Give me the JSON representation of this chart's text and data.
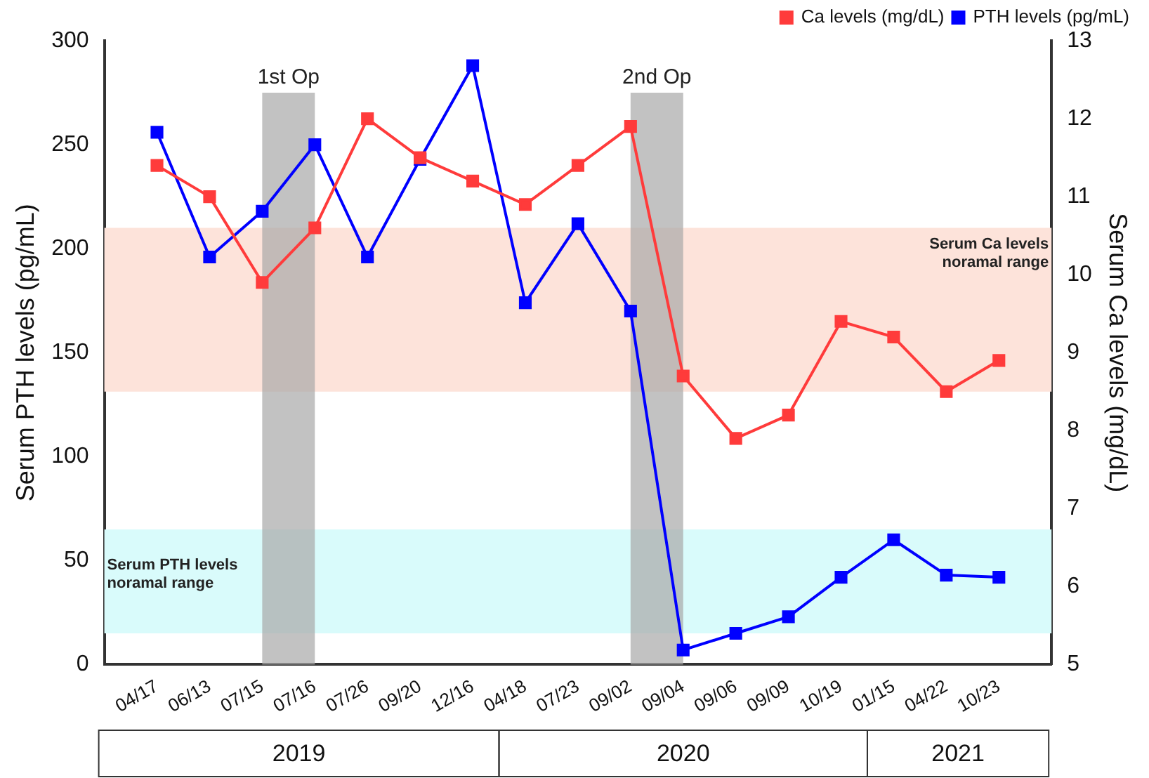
{
  "chart_data": {
    "type": "line",
    "categories": [
      "04/17",
      "06/13",
      "07/15",
      "07/16",
      "07/26",
      "09/20",
      "12/16",
      "04/18",
      "07/23",
      "09/02",
      "09/04",
      "09/06",
      "09/09",
      "10/19",
      "01/15",
      "04/22",
      "10/23"
    ],
    "series": [
      {
        "name": "PTH levels (pg/mL)",
        "color": "#0000ff",
        "values": [
          256,
          196,
          218,
          250,
          196,
          243,
          288,
          174,
          212,
          170,
          7,
          15,
          23,
          42,
          60,
          43,
          42
        ]
      },
      {
        "name": "Ca levels (mg/dL)",
        "color": "#ff3b3b",
        "axis": "y2",
        "values": [
          11.4,
          11.0,
          9.9,
          10.6,
          12.0,
          11.5,
          11.2,
          10.9,
          11.4,
          11.9,
          8.7,
          7.9,
          8.2,
          9.4,
          9.2,
          8.5,
          8.9
        ]
      }
    ],
    "ylabel": "Serum PTH levels (pg/mL)",
    "y2label": "Serum Ca levels (mg/dL)",
    "ylim": [
      0,
      300
    ],
    "yticks": [
      0,
      50,
      100,
      150,
      200,
      250,
      300
    ],
    "y2lim": [
      5,
      13
    ],
    "y2ticks": [
      5,
      6,
      7,
      8,
      9,
      10,
      11,
      12,
      13
    ],
    "bands": [
      {
        "axis": "y2",
        "from": 8.5,
        "to": 10.6,
        "label": "Serum Ca levels noramal range",
        "color": "#fde3da"
      },
      {
        "axis": "y",
        "from": 15,
        "to": 65,
        "label": "Serum PTH levels noramal range",
        "color": "#d9fbfb"
      },
      {
        "axis": "x",
        "from": "07/15",
        "to": "07/16",
        "label": "1st Op",
        "color": "#a8a8a8"
      },
      {
        "axis": "x",
        "from": "09/02",
        "to": "09/04",
        "label": "2nd Op",
        "color": "#a8a8a8"
      }
    ],
    "annotations": [
      "2019",
      "2020",
      "2021"
    ],
    "marker": "square",
    "line_style": "solid",
    "legend": "top right",
    "grid": false
  }
}
